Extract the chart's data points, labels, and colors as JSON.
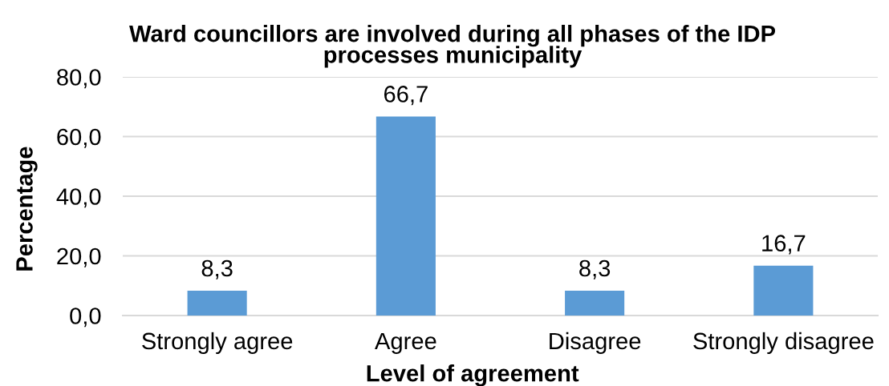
{
  "chart_data": {
    "type": "bar",
    "title": "Ward councillors are involved during all phases of the IDP processes municipality",
    "xlabel": "Level of agreement",
    "ylabel": "Percentage",
    "categories": [
      "Strongly agree",
      "Agree",
      "Disagree",
      "Strongly disagree"
    ],
    "values": [
      8.3,
      66.7,
      8.3,
      16.7
    ],
    "color": "#5b9bd5",
    "value_labels": [
      "8,3",
      "66,7",
      "8,3",
      "16,7"
    ],
    "ylim": [
      0,
      80
    ],
    "yticks": [
      {
        "value": 0,
        "label": "0,0"
      },
      {
        "value": 20,
        "label": "20,0"
      },
      {
        "value": 40,
        "label": "40,0"
      },
      {
        "value": 60,
        "label": "60,0"
      },
      {
        "value": 80,
        "label": "80,0"
      }
    ],
    "grid": "y"
  }
}
